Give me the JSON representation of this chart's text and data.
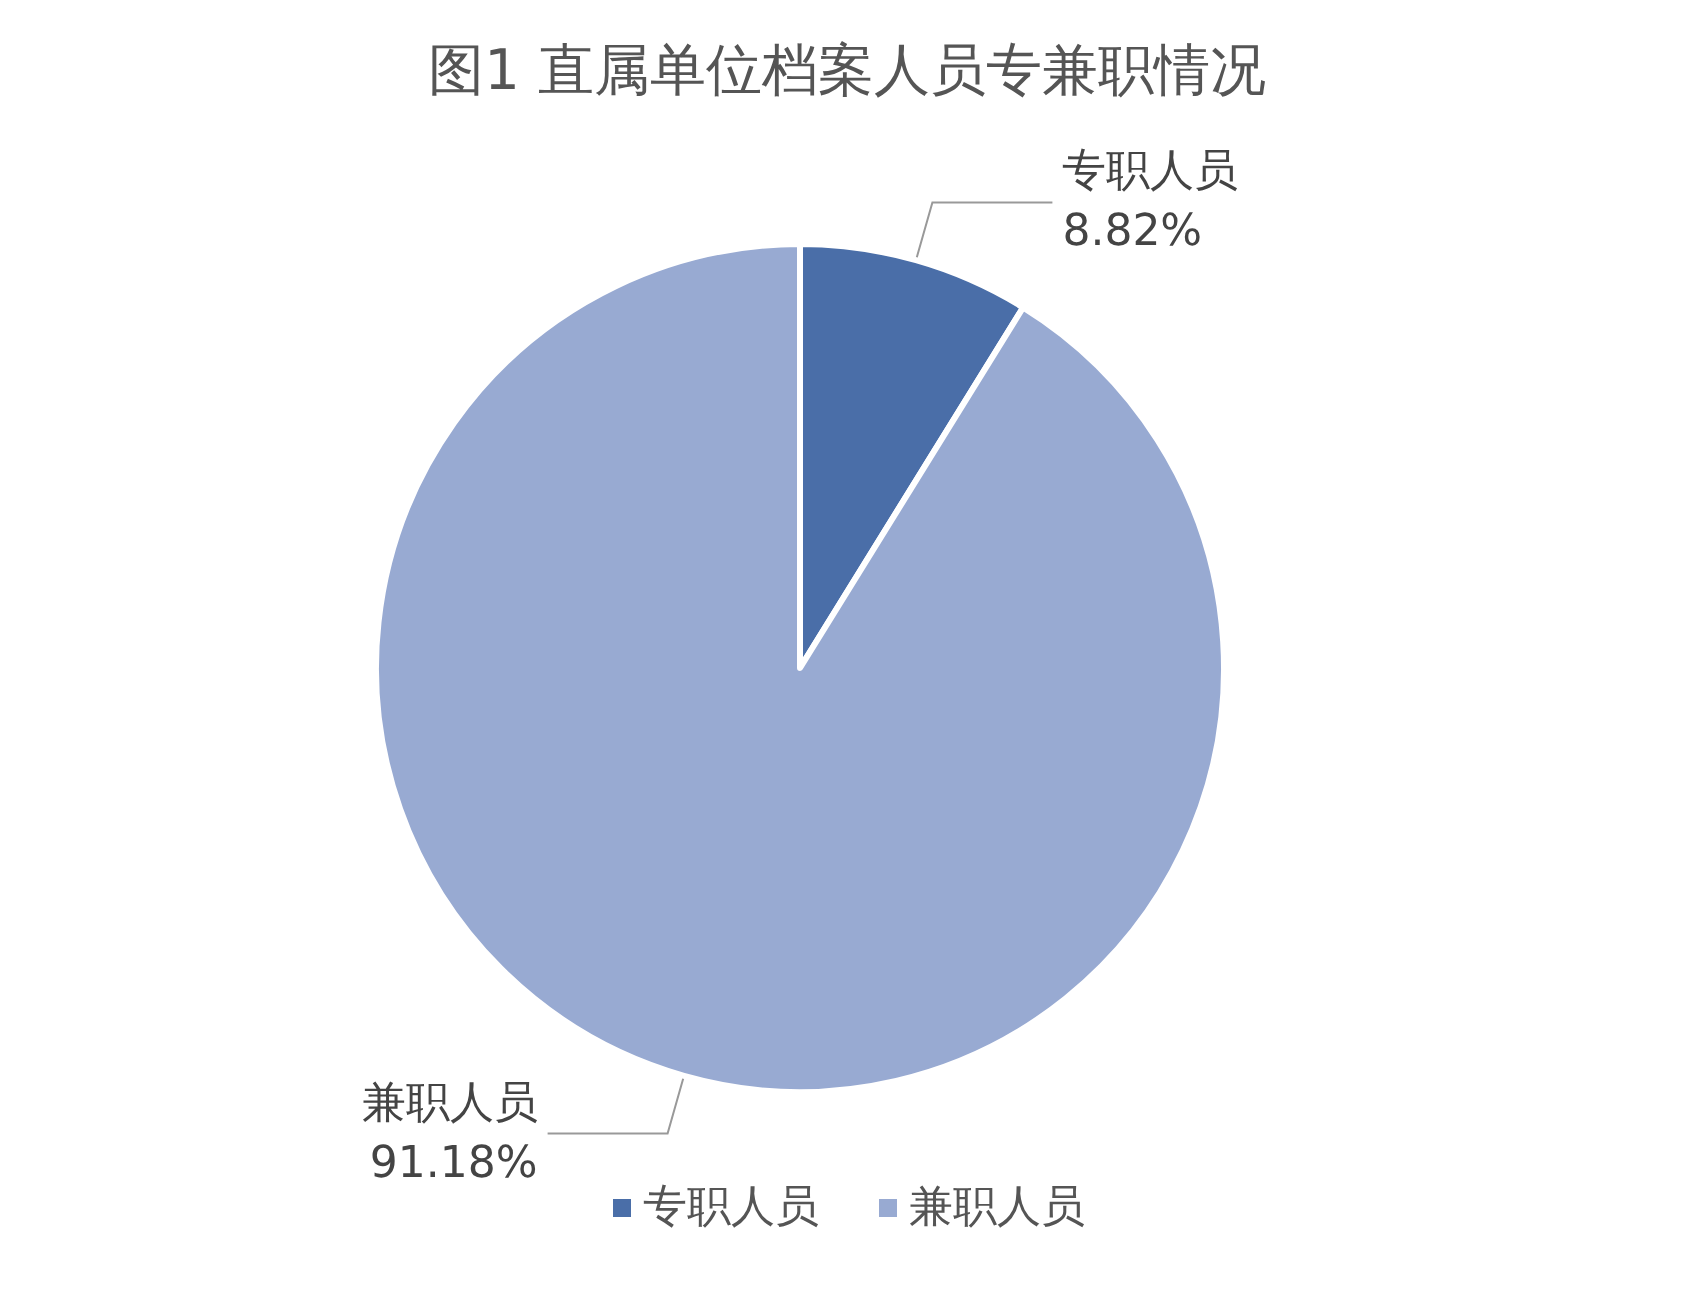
{
  "chart_data": {
    "type": "pie",
    "title": "图1 直属单位档案人员专兼职情况",
    "categories": [
      "专职人员",
      "兼职人员"
    ],
    "values": [
      8.82,
      91.18
    ],
    "colors": [
      "#4a6ea8",
      "#98aad2"
    ],
    "value_labels": [
      "8.82%",
      "91.18%"
    ],
    "legend": "bottom"
  }
}
